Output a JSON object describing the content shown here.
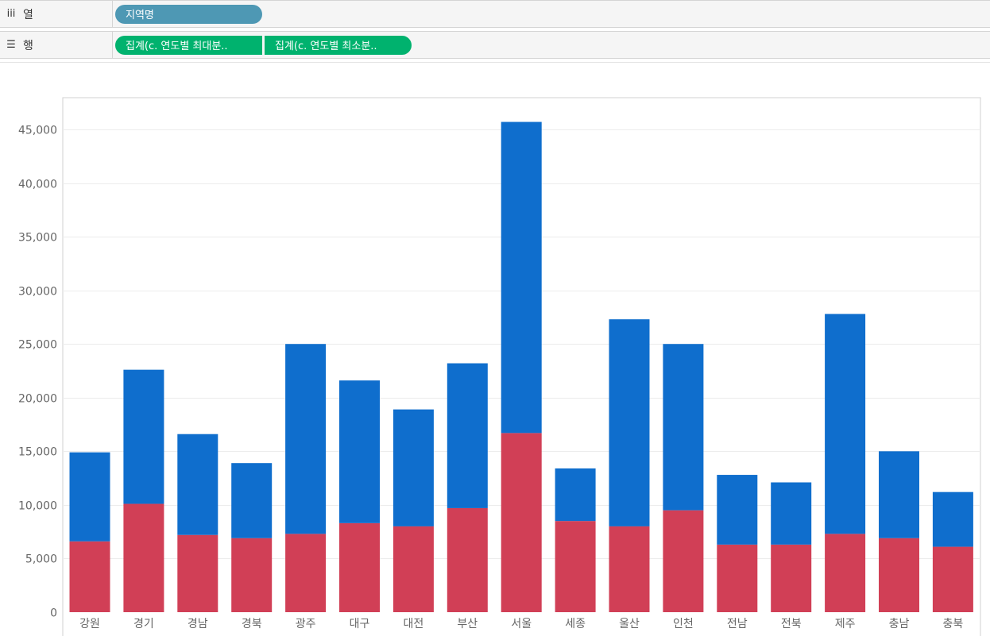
{
  "shelves": {
    "columns": {
      "icon": "columns-icon",
      "label": "열",
      "pills": [
        "지역명"
      ]
    },
    "rows": {
      "icon": "rows-icon",
      "label": "행",
      "pills": [
        "집계(c. 연도별 최대분..",
        "집계(c. 연도별 최소분.."
      ]
    }
  },
  "colors": {
    "max_series": "#0f6ecd",
    "min_series": "#d13f56",
    "dimension_pill": "#4e98b4",
    "measure_pill": "#00b26e"
  },
  "chart_data": {
    "type": "bar",
    "stacked": true,
    "title": "",
    "xlabel": "",
    "ylabel": "",
    "ylim": [
      0,
      46000
    ],
    "yticks": [
      0,
      5000,
      10000,
      15000,
      20000,
      25000,
      30000,
      35000,
      40000,
      45000
    ],
    "ytick_labels": [
      "0",
      "5,000",
      "10,000",
      "15,000",
      "20,000",
      "25,000",
      "30,000",
      "35,000",
      "40,000",
      "45,000"
    ],
    "grid": true,
    "legend": "none",
    "categories": [
      "강원",
      "경기",
      "경남",
      "경북",
      "광주",
      "대구",
      "대전",
      "부산",
      "서울",
      "세종",
      "울산",
      "인천",
      "전남",
      "전북",
      "제주",
      "충남",
      "충북"
    ],
    "series": [
      {
        "values": [
          6600,
          10100,
          7200,
          6900,
          7300,
          8300,
          8000,
          9700,
          16700,
          8500,
          8000,
          9500,
          6300,
          6300,
          7300,
          6900,
          6100
        ]
      },
      {
        "values": [
          8300,
          12500,
          9400,
          7000,
          17700,
          13300,
          10900,
          13500,
          29000,
          4900,
          19300,
          15500,
          6500,
          5800,
          20500,
          8100,
          5100
        ]
      }
    ]
  }
}
